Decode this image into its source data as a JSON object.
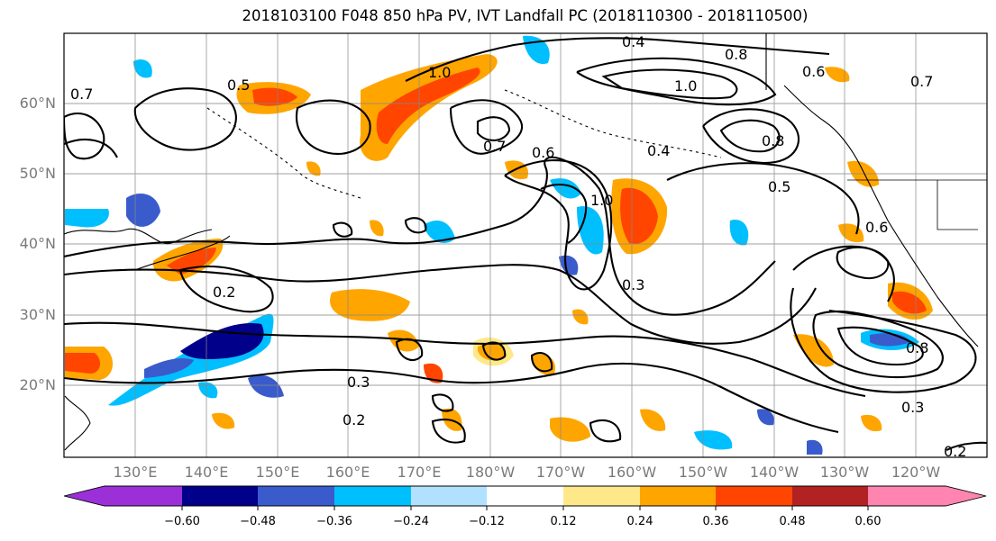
{
  "title": "2018103100 F048 850 hPa PV, IVT Landfall PC (2018110300 - 2018110500)",
  "map": {
    "lat_labels": [
      "60°N",
      "50°N",
      "40°N",
      "30°N",
      "20°N"
    ],
    "lon_labels": [
      "130°E",
      "140°E",
      "150°E",
      "160°E",
      "170°E",
      "180°W",
      "170°W",
      "160°W",
      "150°W",
      "140°W",
      "130°W",
      "120°W"
    ],
    "contour_labels": [
      "0.5",
      "1.0",
      "0.4",
      "0.8",
      "1.0",
      "0.6",
      "0.7",
      "0.7",
      "0.6",
      "0.4",
      "1.0",
      "0.8",
      "0.5",
      "0.6",
      "0.3",
      "0.2",
      "0.3",
      "0.2",
      "0.3",
      "0.2",
      "0.8",
      "0.7"
    ],
    "gridlines": "on"
  },
  "colorbar": {
    "tick_labels": [
      "−0.60",
      "−0.48",
      "−0.36",
      "−0.24",
      "−0.12",
      "0.12",
      "0.24",
      "0.36",
      "0.48",
      "0.60"
    ],
    "colors": [
      "#9b30d9",
      "#00008b",
      "#3a5bcc",
      "#00bfff",
      "#b0e2ff",
      "#ffffff",
      "#ffe88a",
      "#ffa500",
      "#ff4500",
      "#b22222",
      "#ff85b0"
    ]
  }
}
